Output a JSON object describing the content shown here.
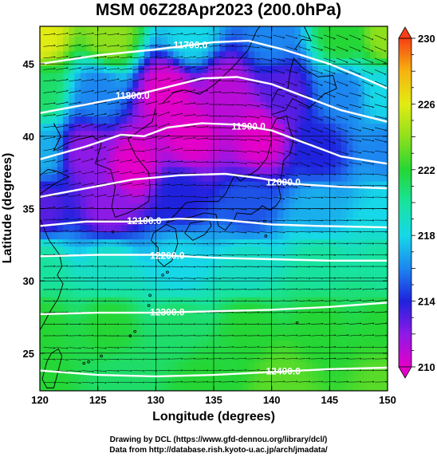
{
  "chart_data": {
    "type": "heatmap",
    "title": "MSM 06Z28Apr2023 (200.0hPa)",
    "xlabel": "Longitude (degrees)",
    "ylabel": "Latitude  (degrees)",
    "xlim": [
      120,
      150
    ],
    "ylim": [
      22.4,
      47.6
    ],
    "xticks": [
      120,
      125,
      130,
      135,
      140,
      145,
      150
    ],
    "yticks": [
      25,
      30,
      35,
      40,
      45
    ],
    "colorbar": {
      "label_ticks": [
        210,
        214,
        218,
        222,
        226,
        230
      ],
      "range": [
        210,
        230
      ],
      "colors": [
        "#e400c8",
        "#8e1ae6",
        "#1f22dd",
        "#1d86f0",
        "#16d8e8",
        "#18e39e",
        "#25d635",
        "#8fe01c",
        "#e2ec12",
        "#f7b30f",
        "#f53f16"
      ]
    },
    "contours": [
      {
        "value": 11700,
        "label": "11700.0",
        "points": [
          [
            120,
            45.0
          ],
          [
            125,
            45.6
          ],
          [
            130,
            46.0
          ],
          [
            135,
            46.5
          ],
          [
            138,
            46.6
          ],
          [
            141,
            46.0
          ],
          [
            145,
            45.0
          ],
          [
            148,
            44.0
          ],
          [
            150,
            43.3
          ]
        ]
      },
      {
        "value": 11800,
        "label": "11800.0",
        "points": [
          [
            120,
            41.6
          ],
          [
            124,
            42.2
          ],
          [
            128,
            42.8
          ],
          [
            131,
            43.4
          ],
          [
            134,
            44.0
          ],
          [
            137,
            44.1
          ],
          [
            140,
            43.6
          ],
          [
            143,
            42.7
          ],
          [
            146,
            41.8
          ],
          [
            150,
            41.0
          ]
        ]
      },
      {
        "value": 11900,
        "label": "11900.0",
        "points": [
          [
            120,
            38.4
          ],
          [
            124,
            39.3
          ],
          [
            127,
            40.1
          ],
          [
            129,
            40.0
          ],
          [
            131,
            40.6
          ],
          [
            134,
            40.9
          ],
          [
            137,
            40.8
          ],
          [
            140,
            40.4
          ],
          [
            143,
            39.5
          ],
          [
            146,
            38.6
          ],
          [
            150,
            38.1
          ]
        ]
      },
      {
        "value": 12000,
        "label": "12000.0",
        "points": [
          [
            120,
            35.8
          ],
          [
            124,
            36.4
          ],
          [
            128,
            37.0
          ],
          [
            132,
            37.3
          ],
          [
            136,
            37.4
          ],
          [
            139,
            37.1
          ],
          [
            142,
            36.7
          ],
          [
            146,
            36.5
          ],
          [
            150,
            36.4
          ]
        ]
      },
      {
        "value": 12100,
        "label": "12100.0",
        "points": [
          [
            120,
            33.8
          ],
          [
            124,
            34.1
          ],
          [
            128,
            34.1
          ],
          [
            132,
            34.3
          ],
          [
            136,
            34.2
          ],
          [
            140,
            33.9
          ],
          [
            144,
            33.8
          ],
          [
            150,
            33.7
          ]
        ]
      },
      {
        "value": 12200,
        "label": "12200.0",
        "points": [
          [
            120,
            31.7
          ],
          [
            125,
            31.8
          ],
          [
            130,
            31.8
          ],
          [
            135,
            31.6
          ],
          [
            140,
            31.5
          ],
          [
            145,
            31.4
          ],
          [
            150,
            31.4
          ]
        ]
      },
      {
        "value": 12300,
        "label": "12300.0",
        "points": [
          [
            120,
            27.7
          ],
          [
            125,
            27.8
          ],
          [
            130,
            27.8
          ],
          [
            135,
            27.9
          ],
          [
            140,
            28.0
          ],
          [
            145,
            28.2
          ],
          [
            150,
            28.5
          ]
        ]
      },
      {
        "value": 12400,
        "label": "12400.0",
        "points": [
          [
            120,
            23.8
          ],
          [
            125,
            23.5
          ],
          [
            130,
            23.4
          ],
          [
            135,
            23.5
          ],
          [
            140,
            23.7
          ],
          [
            145,
            23.9
          ],
          [
            150,
            24.0
          ]
        ]
      }
    ],
    "temperature_field": [
      {
        "lon": 120,
        "lat": 47,
        "value": 226
      },
      {
        "lon": 126,
        "lat": 47,
        "value": 224
      },
      {
        "lon": 133,
        "lat": 47,
        "value": 218
      },
      {
        "lon": 140,
        "lat": 47,
        "value": 216
      },
      {
        "lon": 146,
        "lat": 47,
        "value": 222
      },
      {
        "lon": 150,
        "lat": 47,
        "value": 224
      },
      {
        "lon": 120,
        "lat": 43,
        "value": 221
      },
      {
        "lon": 125,
        "lat": 43,
        "value": 216
      },
      {
        "lon": 131,
        "lat": 43,
        "value": 210
      },
      {
        "lon": 136,
        "lat": 43,
        "value": 211
      },
      {
        "lon": 141,
        "lat": 43,
        "value": 213
      },
      {
        "lon": 146,
        "lat": 43,
        "value": 216
      },
      {
        "lon": 150,
        "lat": 43,
        "value": 218
      },
      {
        "lon": 120,
        "lat": 39,
        "value": 217
      },
      {
        "lon": 124,
        "lat": 39,
        "value": 212
      },
      {
        "lon": 128,
        "lat": 38,
        "value": 210
      },
      {
        "lon": 133,
        "lat": 40,
        "value": 210
      },
      {
        "lon": 139,
        "lat": 40,
        "value": 210
      },
      {
        "lon": 144,
        "lat": 39,
        "value": 214
      },
      {
        "lon": 150,
        "lat": 39,
        "value": 216
      },
      {
        "lon": 120,
        "lat": 35,
        "value": 213
      },
      {
        "lon": 126,
        "lat": 35,
        "value": 212
      },
      {
        "lon": 132,
        "lat": 36,
        "value": 214
      },
      {
        "lon": 138,
        "lat": 35,
        "value": 215
      },
      {
        "lon": 144,
        "lat": 35,
        "value": 217
      },
      {
        "lon": 150,
        "lat": 35,
        "value": 218
      },
      {
        "lon": 120,
        "lat": 31,
        "value": 220
      },
      {
        "lon": 126,
        "lat": 31,
        "value": 219
      },
      {
        "lon": 132,
        "lat": 31,
        "value": 218
      },
      {
        "lon": 138,
        "lat": 31,
        "value": 219
      },
      {
        "lon": 144,
        "lat": 31,
        "value": 220
      },
      {
        "lon": 150,
        "lat": 31,
        "value": 220
      },
      {
        "lon": 120,
        "lat": 27,
        "value": 222
      },
      {
        "lon": 126,
        "lat": 27,
        "value": 222
      },
      {
        "lon": 132,
        "lat": 27,
        "value": 221
      },
      {
        "lon": 138,
        "lat": 27,
        "value": 222
      },
      {
        "lon": 144,
        "lat": 27,
        "value": 222
      },
      {
        "lon": 150,
        "lat": 27,
        "value": 222
      },
      {
        "lon": 120,
        "lat": 23,
        "value": 222
      },
      {
        "lon": 127,
        "lat": 23,
        "value": 221
      },
      {
        "lon": 134,
        "lat": 23,
        "value": 222
      },
      {
        "lon": 141,
        "lat": 23,
        "value": 223
      },
      {
        "lon": 150,
        "lat": 23,
        "value": 223
      }
    ],
    "grid": true
  },
  "credits": {
    "line1": "Drawing by DCL (https://www.gfd-dennou.org/library/dcl/)",
    "line2": "Data from http://database.rish.kyoto-u.ac.jp/arch/jmadata/"
  },
  "colors": {
    "contour": "#ffffff",
    "coast": "#000000"
  }
}
